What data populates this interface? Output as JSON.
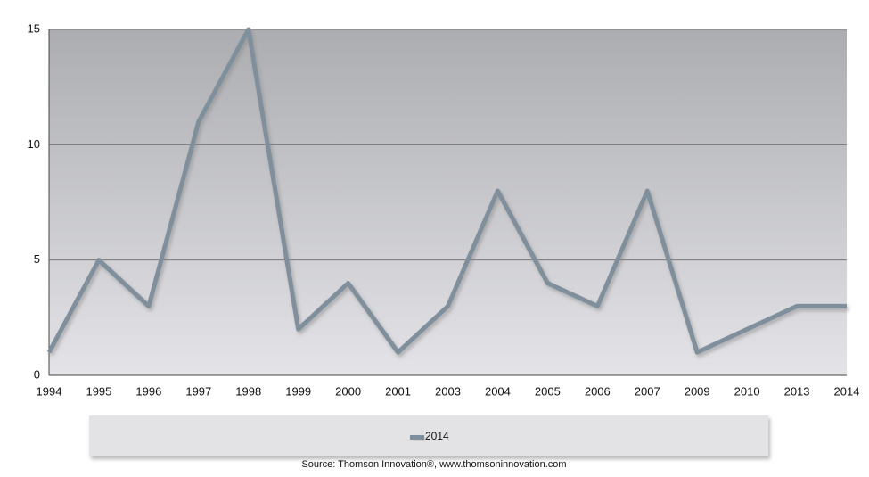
{
  "chart_data": {
    "type": "line",
    "categories": [
      "1994",
      "1995",
      "1996",
      "1997",
      "1998",
      "1999",
      "2000",
      "2001",
      "2003",
      "2004",
      "2005",
      "2006",
      "2007",
      "2009",
      "2010",
      "2013",
      "2014"
    ],
    "series": [
      {
        "name": "2014",
        "color": "#7f8f9c",
        "values": [
          1,
          5,
          3,
          11,
          15,
          2,
          4,
          1,
          3,
          8,
          4,
          3,
          8,
          1,
          2,
          3,
          3
        ]
      }
    ],
    "ylim": [
      0,
      15
    ],
    "yticks": [
      0,
      5,
      10,
      15
    ],
    "grid": true,
    "source": "Source: Thomson Innovation®, www.thomsoninnovation.com"
  }
}
